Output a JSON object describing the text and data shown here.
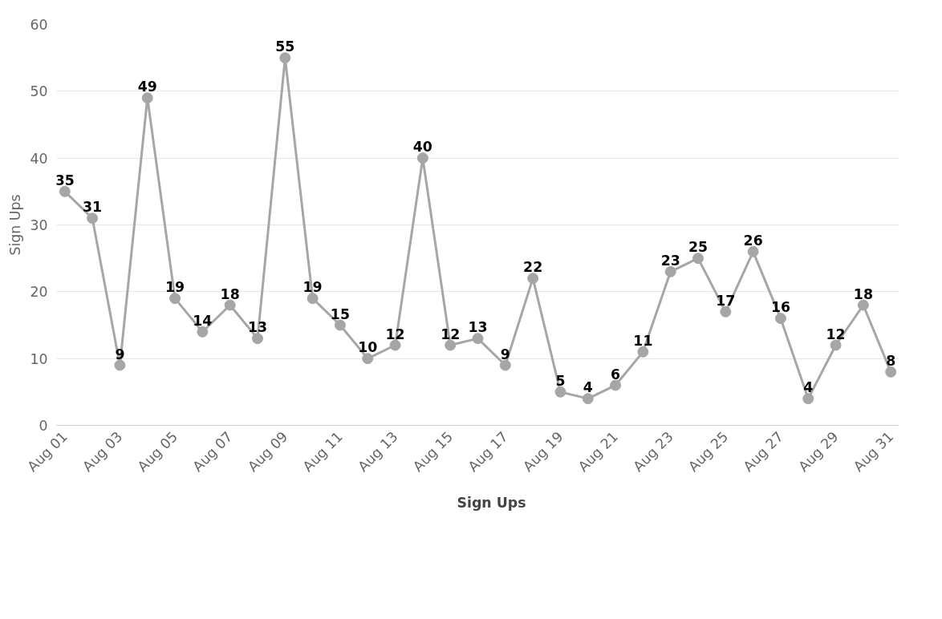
{
  "chart_data": {
    "type": "line",
    "ylabel": "Sign Ups",
    "categories": [
      "Aug 01",
      null,
      "Aug 03",
      null,
      "Aug 05",
      null,
      "Aug 07",
      null,
      "Aug 09",
      null,
      "Aug 11",
      null,
      "Aug 13",
      null,
      "Aug 15",
      null,
      "Aug 17",
      null,
      "Aug 19",
      null,
      "Aug 21",
      null,
      "Aug 23",
      null,
      "Aug 25",
      null,
      "Aug 27",
      null,
      "Aug 29",
      null,
      "Aug 31"
    ],
    "series": [
      {
        "name": "Sign Ups",
        "color": "#a6a6a6",
        "values": [
          35,
          31,
          9,
          49,
          19,
          14,
          18,
          13,
          55,
          19,
          15,
          10,
          12,
          40,
          12,
          13,
          9,
          22,
          5,
          4,
          6,
          11,
          23,
          25,
          17,
          26,
          16,
          4,
          12,
          18,
          8
        ]
      }
    ],
    "ylim": [
      0,
      60
    ],
    "yticks": [
      0,
      10,
      20,
      30,
      40,
      50,
      60
    ],
    "grid": "y",
    "legend": "bottom",
    "marker": "circle",
    "line_style": "solid",
    "data_labels": true
  }
}
